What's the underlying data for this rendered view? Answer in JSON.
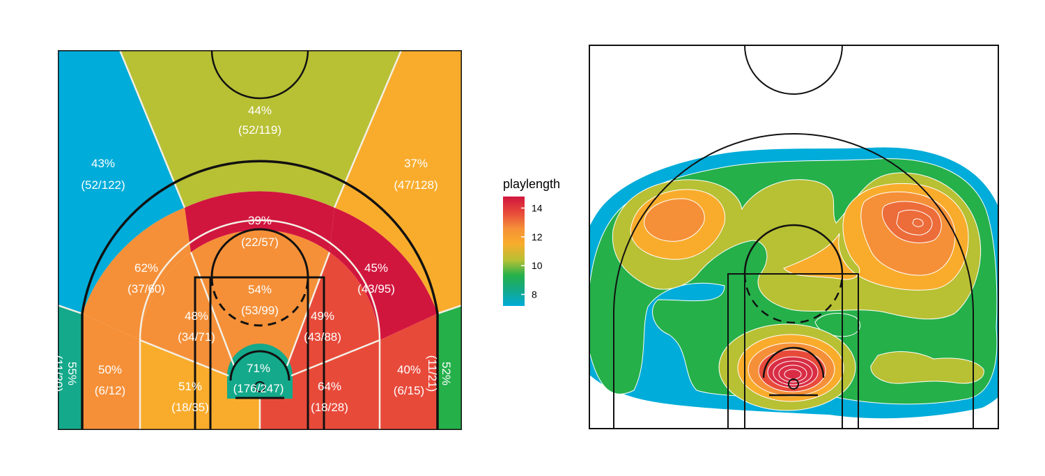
{
  "chart_data": [
    {
      "type": "heatmap",
      "title": "",
      "xlabel": "",
      "ylabel": "",
      "zones": [
        {
          "pct": "44%",
          "ratio": "(52/119)",
          "color": "#b8c034"
        },
        {
          "pct": "43%",
          "ratio": "(52/122)",
          "color": "#00acd9"
        },
        {
          "pct": "37%",
          "ratio": "(47/128)",
          "color": "#f9ac2c"
        },
        {
          "pct": "39%",
          "ratio": "(22/57)",
          "color": "#d1163e"
        },
        {
          "pct": "62%",
          "ratio": "(37/60)",
          "color": "#f59038"
        },
        {
          "pct": "45%",
          "ratio": "(43/95)",
          "color": "#d1163e"
        },
        {
          "pct": "54%",
          "ratio": "(53/99)",
          "color": "#f59038"
        },
        {
          "pct": "48%",
          "ratio": "(34/71)",
          "color": "#f59038"
        },
        {
          "pct": "49%",
          "ratio": "(43/88)",
          "color": "#e84a3a"
        },
        {
          "pct": "50%",
          "ratio": "(6/12)",
          "color": "#f59038"
        },
        {
          "pct": "51%",
          "ratio": "(18/35)",
          "color": "#f9ac2c"
        },
        {
          "pct": "64%",
          "ratio": "(18/28)",
          "color": "#e84a3a"
        },
        {
          "pct": "40%",
          "ratio": "(6/15)",
          "color": "#e84a3a"
        },
        {
          "pct": "71%",
          "ratio": "(176/247)",
          "color": "#14a98a"
        },
        {
          "pct": "55%",
          "ratio": "(11/20)",
          "color": "#14a98a"
        },
        {
          "pct": "52%",
          "ratio": "(11/21)",
          "color": "#25b04a"
        }
      ]
    },
    {
      "type": "heatmap",
      "title": "",
      "legend": {
        "title": "playlength",
        "ticks": [
          8,
          10,
          12,
          14
        ],
        "range": [
          7.2,
          14.8
        ],
        "colors": [
          "#00acd9",
          "#14a98a",
          "#25b04a",
          "#b8c034",
          "#f9ac2c",
          "#f59038",
          "#e84a3a",
          "#d1163e"
        ]
      },
      "contour_colors": {
        "level_8": "#00acd9",
        "level_9": "#25a845",
        "level_10": "#b8c034",
        "level_11": "#f9ac2c",
        "level_12": "#f59038",
        "level_13": "#ec6c3a",
        "level_14": "#d92d45"
      }
    }
  ]
}
